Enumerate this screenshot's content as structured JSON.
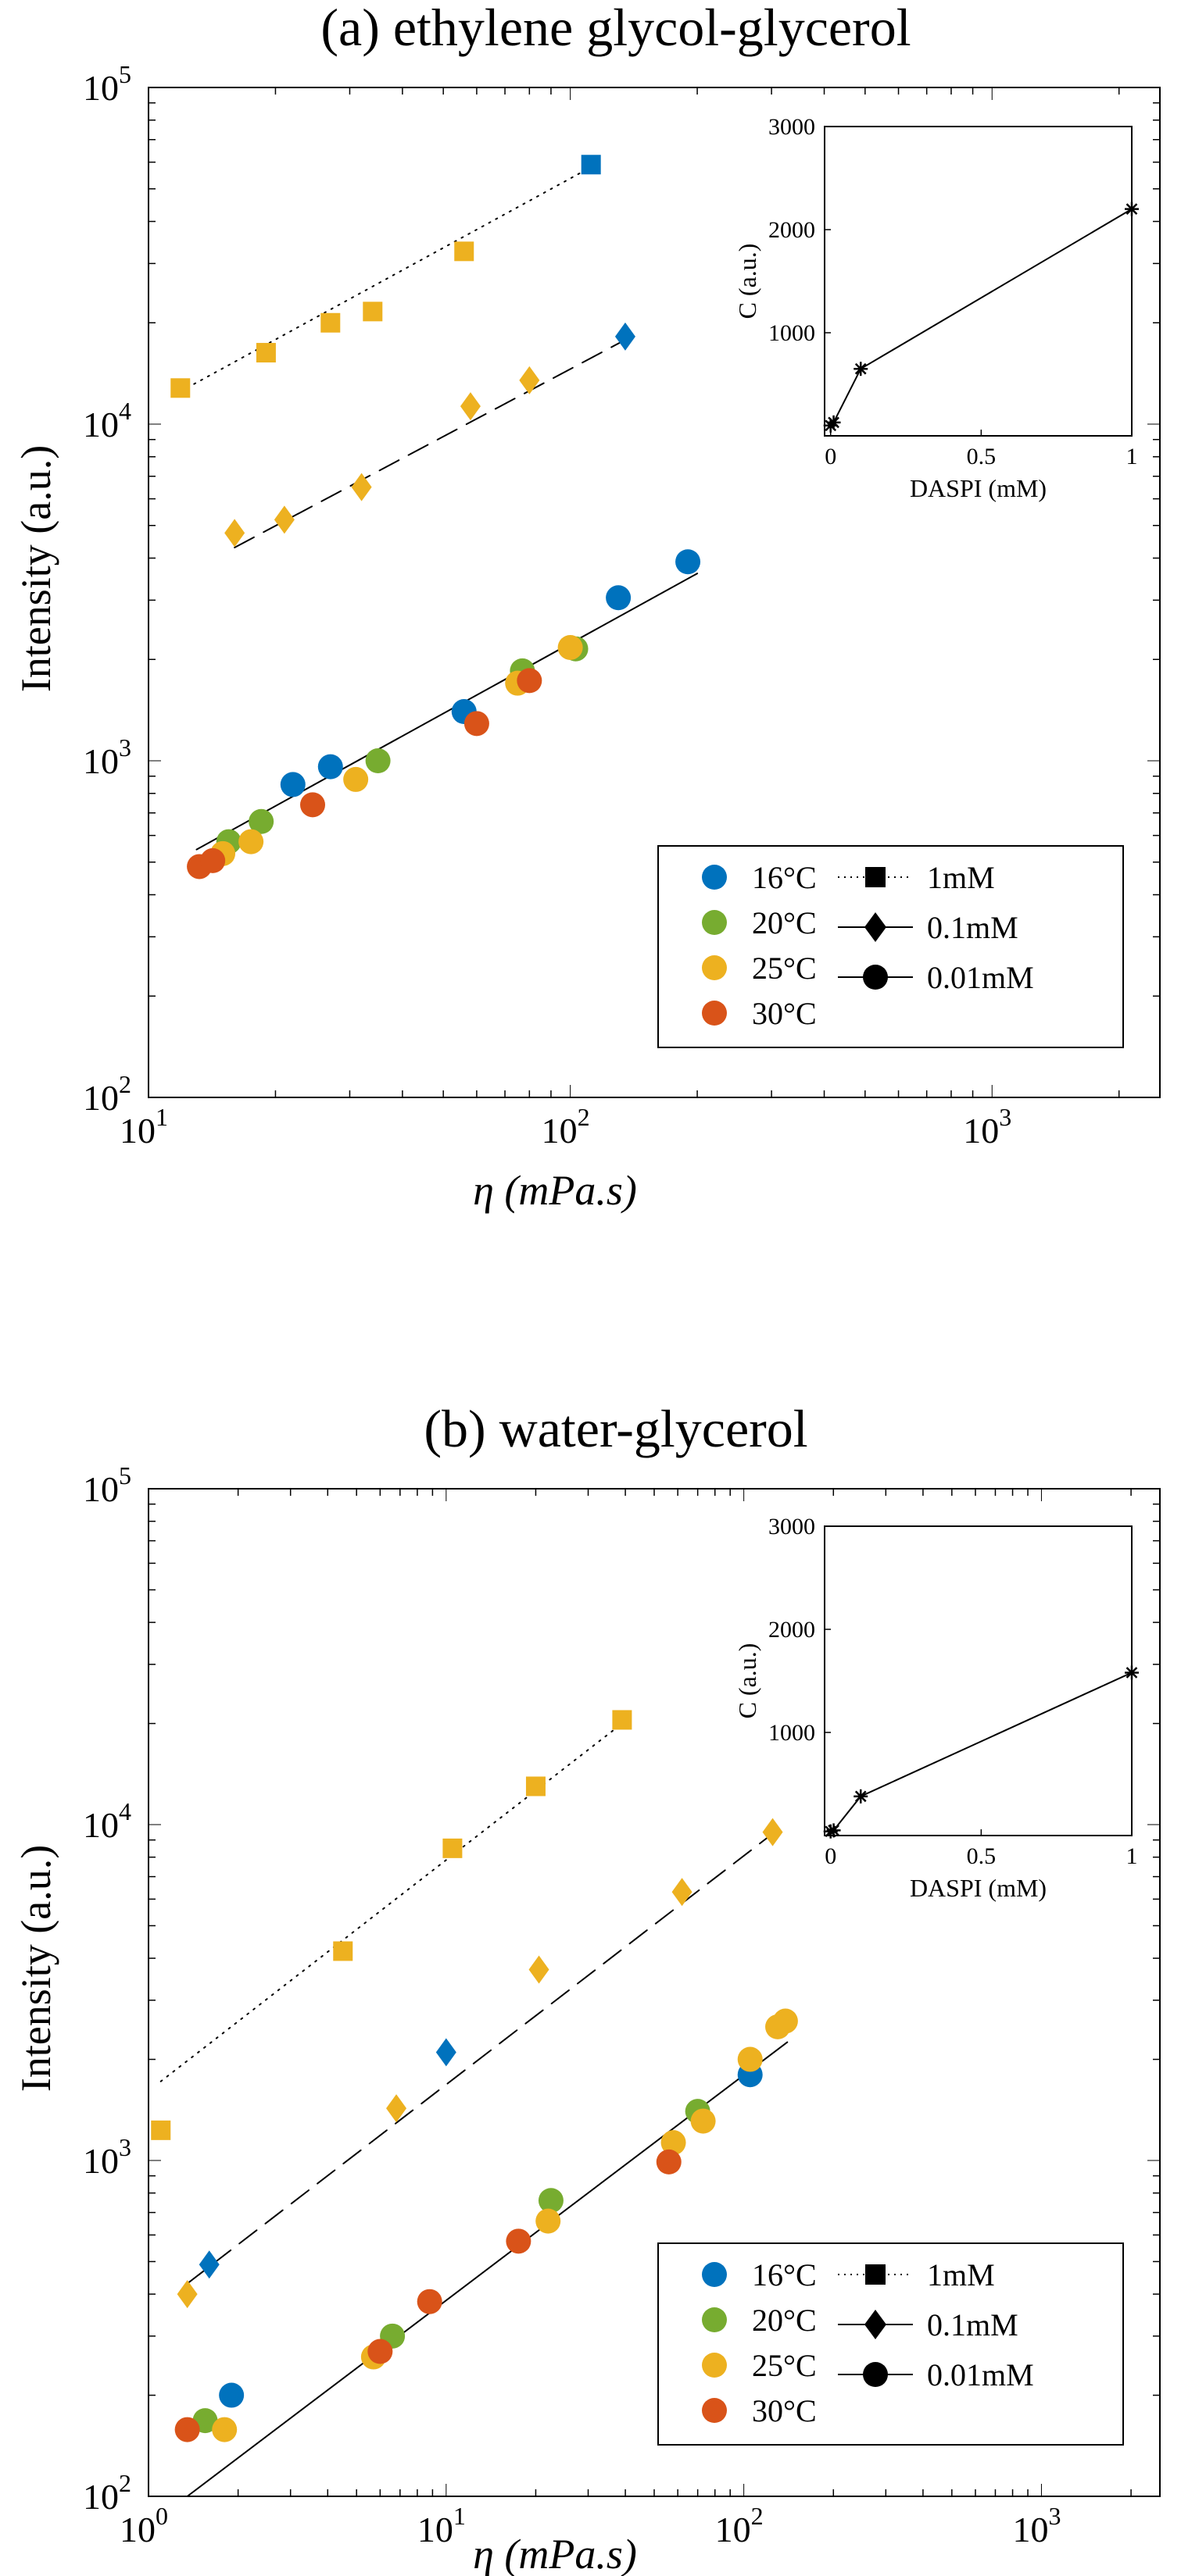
{
  "colors": {
    "16": "#0072BD",
    "20": "#77AC30",
    "25": "#EDB120",
    "30": "#D95319"
  },
  "chart_data": [
    {
      "type": "scatter",
      "title": "(a) ethylene glycol-glycerol",
      "xlabel": "η (mPa.s)",
      "ylabel": "Intensity (a.u.)",
      "xscale": "log",
      "yscale": "log",
      "xlim": [
        10,
        2500
      ],
      "ylim": [
        100,
        100000
      ],
      "xticks": [
        {
          "base": "10",
          "exp": "1",
          "value": 10
        },
        {
          "base": "10",
          "exp": "2",
          "value": 100
        },
        {
          "base": "10",
          "exp": "3",
          "value": 1000
        }
      ],
      "yticks": [
        {
          "base": "10",
          "exp": "2",
          "value": 100
        },
        {
          "base": "10",
          "exp": "3",
          "value": 1000
        },
        {
          "base": "10",
          "exp": "4",
          "value": 10000
        },
        {
          "base": "10",
          "exp": "5",
          "value": 100000
        }
      ],
      "legend": {
        "position": "lower-right",
        "temperatures": [
          "16°C",
          "20°C",
          "25°C",
          "30°C"
        ],
        "concentrations": [
          "1mM",
          "0.1mM",
          "0.01mM"
        ]
      },
      "series": [
        {
          "name": "1mM",
          "marker": "square",
          "points": [
            {
              "x": 11.9,
              "y": 12800,
              "t": "25"
            },
            {
              "x": 19,
              "y": 16300,
              "t": "25"
            },
            {
              "x": 27,
              "y": 20000,
              "t": "25"
            },
            {
              "x": 34,
              "y": 21600,
              "t": "25"
            },
            {
              "x": 56,
              "y": 32600,
              "t": "25"
            },
            {
              "x": 112,
              "y": 59000,
              "t": "16"
            }
          ]
        },
        {
          "name": "0.1mM",
          "marker": "diamond",
          "points": [
            {
              "x": 16,
              "y": 4750,
              "t": "25"
            },
            {
              "x": 21,
              "y": 5200,
              "t": "25"
            },
            {
              "x": 32,
              "y": 6500,
              "t": "25"
            },
            {
              "x": 58,
              "y": 11300,
              "t": "25"
            },
            {
              "x": 80,
              "y": 13500,
              "t": "25"
            },
            {
              "x": 135,
              "y": 18200,
              "t": "16"
            }
          ]
        },
        {
          "name": "0.01mM",
          "marker": "circle",
          "points": [
            {
              "x": 22,
              "y": 850,
              "t": "16"
            },
            {
              "x": 27,
              "y": 960,
              "t": "16"
            },
            {
              "x": 56,
              "y": 1400,
              "t": "16"
            },
            {
              "x": 130,
              "y": 3050,
              "t": "16"
            },
            {
              "x": 190,
              "y": 3900,
              "t": "16"
            },
            {
              "x": 15.5,
              "y": 575,
              "t": "20"
            },
            {
              "x": 18.5,
              "y": 660,
              "t": "20"
            },
            {
              "x": 35,
              "y": 1000,
              "t": "20"
            },
            {
              "x": 77,
              "y": 1850,
              "t": "20"
            },
            {
              "x": 103,
              "y": 2150,
              "t": "20"
            },
            {
              "x": 15,
              "y": 530,
              "t": "25"
            },
            {
              "x": 17.5,
              "y": 575,
              "t": "25"
            },
            {
              "x": 31,
              "y": 880,
              "t": "25"
            },
            {
              "x": 75,
              "y": 1700,
              "t": "25"
            },
            {
              "x": 100,
              "y": 2170,
              "t": "25"
            },
            {
              "x": 13.2,
              "y": 485,
              "t": "30"
            },
            {
              "x": 14.2,
              "y": 505,
              "t": "30"
            },
            {
              "x": 24.5,
              "y": 740,
              "t": "30"
            },
            {
              "x": 60,
              "y": 1290,
              "t": "30"
            },
            {
              "x": 80,
              "y": 1730,
              "t": "30"
            }
          ]
        }
      ],
      "fits": [
        {
          "name": "1mM",
          "dash": "dotted",
          "x": [
            11.9,
            112
          ],
          "y": [
            12500,
            58000
          ]
        },
        {
          "name": "0.1mM",
          "dash": "dashed",
          "x": [
            16,
            135
          ],
          "y": [
            4300,
            17800
          ]
        },
        {
          "name": "0.01mM",
          "dash": "solid",
          "x": [
            13,
            200
          ],
          "y": [
            545,
            3600
          ]
        }
      ],
      "inset": {
        "xlabel": "DASPI (mM)",
        "ylabel": "C (a.u.)",
        "xlim": [
          -0.02,
          1
        ],
        "ylim": [
          0,
          3000
        ],
        "xticks": [
          "0",
          "0.5",
          "1"
        ],
        "yticks": [
          "1000",
          "2000",
          "3000"
        ],
        "x": [
          0,
          0.01,
          0.1,
          1
        ],
        "y": [
          100,
          130,
          650,
          2200
        ]
      }
    },
    {
      "type": "scatter",
      "title": "(b) water-glycerol",
      "xlabel": "η (mPa.s)",
      "ylabel": "Intensity (a.u.)",
      "xscale": "log",
      "yscale": "log",
      "xlim": [
        1,
        2500
      ],
      "ylim": [
        100,
        100000
      ],
      "xticks": [
        {
          "base": "10",
          "exp": "0",
          "value": 1
        },
        {
          "base": "10",
          "exp": "1",
          "value": 10
        },
        {
          "base": "10",
          "exp": "2",
          "value": 100
        },
        {
          "base": "10",
          "exp": "3",
          "value": 1000
        }
      ],
      "yticks": [
        {
          "base": "10",
          "exp": "2",
          "value": 100
        },
        {
          "base": "10",
          "exp": "3",
          "value": 1000
        },
        {
          "base": "10",
          "exp": "4",
          "value": 10000
        },
        {
          "base": "10",
          "exp": "5",
          "value": 100000
        }
      ],
      "legend": {
        "position": "lower-right",
        "temperatures": [
          "16°C",
          "20°C",
          "25°C",
          "30°C"
        ],
        "concentrations": [
          "1mM",
          "0.1mM",
          "0.01mM"
        ]
      },
      "series": [
        {
          "name": "1mM",
          "marker": "square",
          "points": [
            {
              "x": 1.1,
              "y": 1230,
              "t": "25"
            },
            {
              "x": 4.5,
              "y": 4200,
              "t": "25"
            },
            {
              "x": 10.5,
              "y": 8500,
              "t": "25"
            },
            {
              "x": 20,
              "y": 13000,
              "t": "25"
            },
            {
              "x": 39,
              "y": 20500,
              "t": "25"
            }
          ]
        },
        {
          "name": "0.1mM",
          "marker": "diamond",
          "points": [
            {
              "x": 1.35,
              "y": 400,
              "t": "25"
            },
            {
              "x": 6.8,
              "y": 1430,
              "t": "25"
            },
            {
              "x": 20.5,
              "y": 3700,
              "t": "25"
            },
            {
              "x": 62,
              "y": 6300,
              "t": "25"
            },
            {
              "x": 125,
              "y": 9500,
              "t": "25"
            },
            {
              "x": 1.6,
              "y": 490,
              "t": "16"
            },
            {
              "x": 10,
              "y": 2100,
              "t": "16"
            }
          ]
        },
        {
          "name": "0.01mM",
          "marker": "circle",
          "points": [
            {
              "x": 1.9,
              "y": 200,
              "t": "16"
            },
            {
              "x": 105,
              "y": 1800,
              "t": "16"
            },
            {
              "x": 1.55,
              "y": 168,
              "t": "20"
            },
            {
              "x": 6.6,
              "y": 300,
              "t": "20"
            },
            {
              "x": 22.5,
              "y": 760,
              "t": "20"
            },
            {
              "x": 70,
              "y": 1400,
              "t": "20"
            },
            {
              "x": 1.8,
              "y": 158,
              "t": "25"
            },
            {
              "x": 5.7,
              "y": 260,
              "t": "25"
            },
            {
              "x": 22,
              "y": 660,
              "t": "25"
            },
            {
              "x": 58,
              "y": 1130,
              "t": "25"
            },
            {
              "x": 73,
              "y": 1310,
              "t": "25"
            },
            {
              "x": 105,
              "y": 2000,
              "t": "25"
            },
            {
              "x": 130,
              "y": 2500,
              "t": "25"
            },
            {
              "x": 138,
              "y": 2600,
              "t": "25"
            },
            {
              "x": 1.35,
              "y": 158,
              "t": "30"
            },
            {
              "x": 6,
              "y": 270,
              "t": "30"
            },
            {
              "x": 8.8,
              "y": 380,
              "t": "30"
            },
            {
              "x": 17.5,
              "y": 575,
              "t": "30"
            },
            {
              "x": 56,
              "y": 990,
              "t": "30"
            }
          ]
        }
      ],
      "fits": [
        {
          "name": "1mM",
          "dash": "dotted",
          "x": [
            1.1,
            39
          ],
          "y": [
            1720,
            20000
          ]
        },
        {
          "name": "0.1mM",
          "dash": "dashed",
          "x": [
            1.35,
            125
          ],
          "y": [
            430,
            9400
          ]
        },
        {
          "name": "0.01mM",
          "dash": "solid",
          "x": [
            1.35,
            140
          ],
          "y": [
            100,
            2250
          ]
        }
      ],
      "inset": {
        "xlabel": "DASPI (mM)",
        "ylabel": "C (a.u.)",
        "xlim": [
          -0.02,
          1
        ],
        "ylim": [
          0,
          3000
        ],
        "xticks": [
          "0",
          "0.5",
          "1"
        ],
        "yticks": [
          "1000",
          "2000",
          "3000"
        ],
        "x": [
          0,
          0.01,
          0.1,
          1
        ],
        "y": [
          40,
          50,
          380,
          1580
        ]
      }
    }
  ]
}
